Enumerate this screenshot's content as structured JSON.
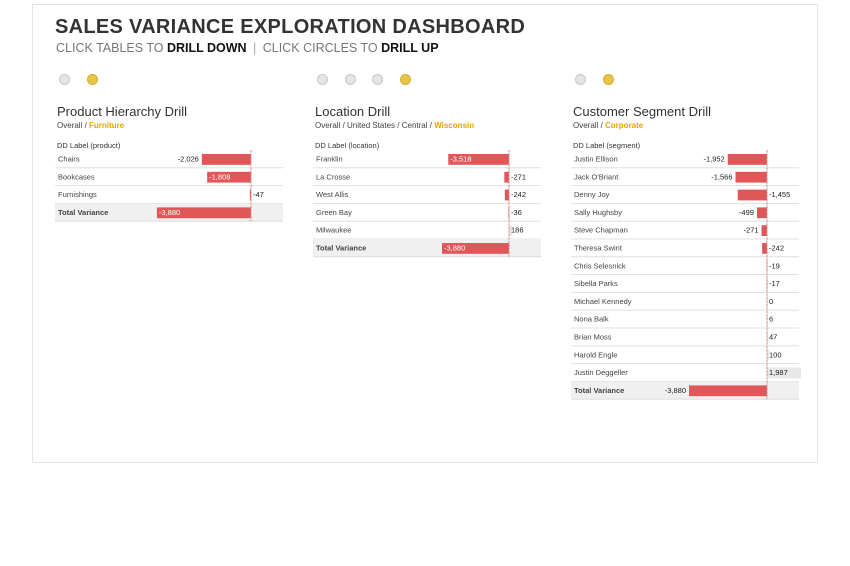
{
  "title": "SALES VARIANCE EXPLORATION DASHBOARD",
  "subtitle": {
    "part1": "CLICK TABLES TO",
    "bold1": "DRILL DOWN",
    "separator": "|",
    "part2": "CLICK CIRCLES TO",
    "bold2": "DRILL UP"
  },
  "colors": {
    "negative": "#e15759",
    "positive": "#e8e8e8",
    "accent": "#e8a500",
    "dot_active": "#e8c547",
    "dot_inactive": "#e5e5e5"
  },
  "panels": [
    {
      "title": "Product Hierarchy Drill",
      "breadcrumb": [
        "Overall",
        "Furniture"
      ],
      "dots": [
        false,
        true
      ],
      "dd_label": "DD Label (product)"
    },
    {
      "title": "Location Drill",
      "breadcrumb": [
        "Overall",
        "United States",
        "Central",
        "Wisconsin"
      ],
      "dots": [
        false,
        false,
        false,
        true
      ],
      "dd_label": "DD Label (location)"
    },
    {
      "title": "Customer Segment Drill",
      "breadcrumb": [
        "Overall",
        "Corporate"
      ],
      "dots": [
        false,
        true
      ],
      "dd_label": "DD Label (segment)"
    }
  ],
  "chart_data": [
    {
      "type": "bar",
      "categories": [
        "Chairs",
        "Bookcases",
        "Furnishings",
        "Total Variance"
      ],
      "values": [
        -2026,
        -1808,
        -47,
        -3880
      ],
      "labels": [
        "-2,026",
        "-1,808",
        "-47",
        "-3,880"
      ],
      "xlim": [
        -4000,
        0
      ]
    },
    {
      "type": "bar",
      "categories": [
        "Franklin",
        "La Crosse",
        "West Allis",
        "Green Bay",
        "Milwaukee",
        "Total Variance"
      ],
      "values": [
        -3518,
        -271,
        -242,
        -36,
        186,
        -3880
      ],
      "labels": [
        "-3,518",
        "-271",
        "-242",
        "-36",
        "186",
        "-3,880"
      ],
      "xlim": [
        -4000,
        0
      ]
    },
    {
      "type": "bar",
      "categories": [
        "Justin Ellison",
        "Jack O'Briant",
        "Denny Joy",
        "Sally Hughsby",
        "Steve Chapman",
        "Theresa Swint",
        "Chris Selesnick",
        "Sibella Parks",
        "Michael Kennedy",
        "Nona Balk",
        "Brian Moss",
        "Harold Engle",
        "Justin Deggeller",
        "Total Variance"
      ],
      "values": [
        -1952,
        -1566,
        -1455,
        -499,
        -271,
        -242,
        -19,
        -17,
        0,
        6,
        47,
        100,
        1987,
        -3880
      ],
      "labels": [
        "-1,952",
        "-1,566",
        "-1,455",
        "-499",
        "-271",
        "-242",
        "-19",
        "-17",
        "0",
        "6",
        "47",
        "100",
        "1,987",
        "-3,880"
      ],
      "xlim": [
        -4000,
        2000
      ]
    }
  ]
}
